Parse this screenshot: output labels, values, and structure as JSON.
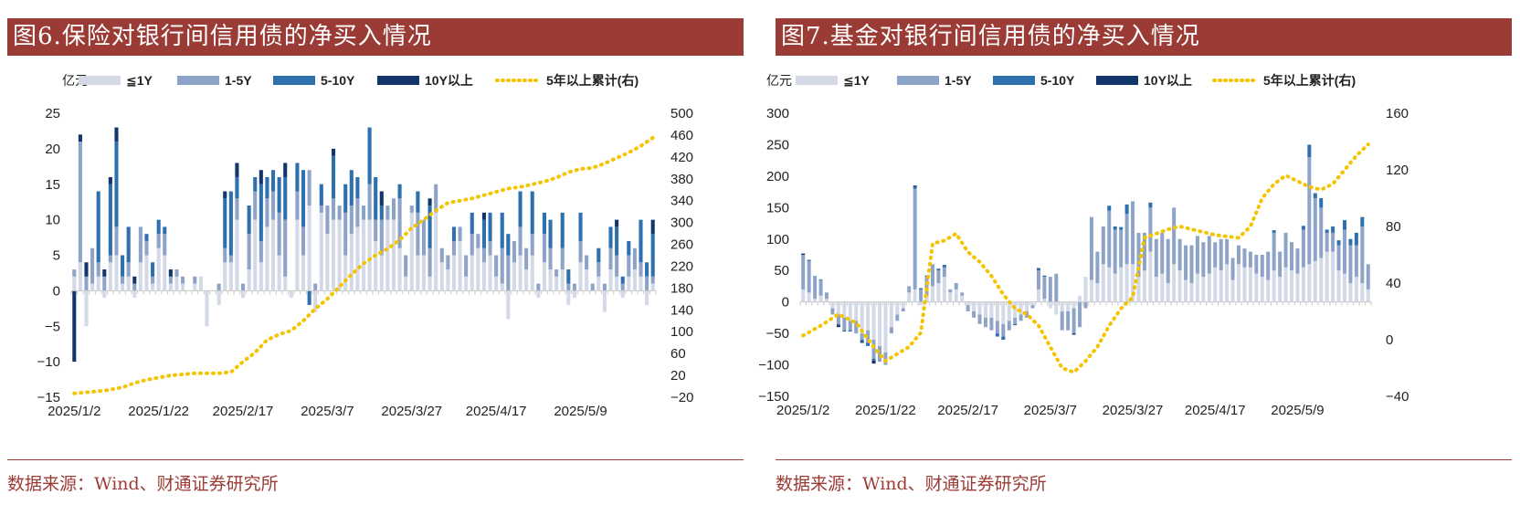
{
  "colors": {
    "title_bg": "#9b3b35",
    "lt1y": "#d4d9e8",
    "y1_5": "#8ea3c8",
    "y5_10": "#2e6fad",
    "y10p": "#12356b",
    "cum": "#f5c400"
  },
  "legend": {
    "unit": "亿元",
    "s1": "≦1Y",
    "s2": "1-5Y",
    "s3": "5-10Y",
    "s4": "10Y以上",
    "s5": "5年以上累计(右)"
  },
  "charts": [
    {
      "title": "图6.保险对银行间信用债的净买入情况",
      "source": "数据来源：Wind、财通证券研究所",
      "chart_data": {
        "type": "bar",
        "stacked": true,
        "x_tick_labels": [
          "2025/1/2",
          "2025/1/22",
          "2025/2/17",
          "2025/3/7",
          "2025/3/27",
          "2025/4/17",
          "2025/5/9"
        ],
        "x_tick_index": [
          0,
          14,
          28,
          42,
          56,
          70,
          84
        ],
        "ylim": [
          -15,
          25
        ],
        "yticks": [
          -15,
          -10,
          -5,
          0,
          5,
          10,
          15,
          20,
          25
        ],
        "y2lim": [
          -20,
          500
        ],
        "y2ticks": [
          -20,
          20,
          60,
          100,
          140,
          180,
          220,
          260,
          300,
          340,
          380,
          420,
          460,
          500
        ],
        "series_names": [
          "≦1Y",
          "1-5Y",
          "5-10Y",
          "10Y以上",
          "5年以上累计(右)"
        ],
        "lt1y": [
          2,
          4,
          -5,
          1,
          2,
          -1,
          4,
          5,
          1,
          2,
          -1,
          4,
          5,
          1,
          6,
          5,
          1,
          2,
          1,
          0,
          1,
          2,
          -5,
          0,
          -2,
          4,
          4,
          10,
          -1,
          3,
          10,
          4,
          9,
          10,
          5,
          2,
          -1,
          10,
          5,
          12,
          -3,
          11,
          8,
          10,
          10,
          5,
          8,
          9,
          10,
          10,
          7,
          5,
          10,
          10,
          6,
          2,
          11,
          5,
          5,
          2,
          11,
          4,
          3,
          5,
          7,
          2,
          5,
          6,
          4,
          5,
          2,
          1,
          -4,
          4,
          5,
          3,
          5,
          -1,
          4,
          3,
          2,
          3,
          -2,
          -1,
          4,
          3,
          0,
          2,
          -3,
          3,
          2,
          -1,
          2,
          3,
          2,
          -2,
          1
        ],
        "y1_5": [
          1,
          17,
          2,
          5,
          2,
          2,
          1,
          4,
          1,
          2,
          1,
          5,
          2,
          1,
          2,
          3,
          1,
          1,
          1,
          0,
          1,
          0,
          0,
          0,
          1,
          2,
          1,
          3,
          1,
          5,
          4,
          3,
          4,
          4,
          6,
          8,
          0,
          4,
          4,
          5,
          1,
          1,
          4,
          3,
          2,
          6,
          4,
          4,
          2,
          5,
          3,
          5,
          2,
          3,
          7,
          3,
          1,
          6,
          5,
          4,
          4,
          2,
          2,
          2,
          2,
          3,
          3,
          2,
          2,
          2,
          3,
          5,
          5,
          3,
          4,
          3,
          3,
          1,
          4,
          3,
          1,
          3,
          1,
          1,
          3,
          2,
          1,
          2,
          1,
          3,
          3,
          1,
          3,
          3,
          2,
          2,
          1
        ],
        "y5_10": [
          0,
          0,
          0,
          0,
          10,
          0,
          10,
          12,
          3,
          5,
          0,
          0,
          1,
          2,
          2,
          1,
          0,
          0,
          0,
          0,
          0,
          0,
          0,
          0,
          0,
          7,
          9,
          3,
          0,
          4,
          2,
          8,
          3,
          3,
          5,
          6,
          0,
          4,
          8,
          -2,
          0,
          3,
          0,
          6,
          0,
          4,
          5,
          3,
          0,
          8,
          6,
          2,
          0,
          0,
          2,
          0,
          0,
          3,
          0,
          6,
          0,
          0,
          0,
          2,
          0,
          0,
          3,
          0,
          4,
          4,
          0,
          5,
          3,
          0,
          5,
          0,
          6,
          0,
          3,
          4,
          0,
          5,
          2,
          0,
          4,
          0,
          0,
          2,
          0,
          3,
          4,
          1,
          2,
          0,
          6,
          2,
          6
        ],
        "y10p": [
          -10,
          1,
          2,
          0,
          0,
          1,
          1,
          2,
          0,
          0,
          1,
          0,
          0,
          0,
          0,
          0,
          1,
          0,
          0,
          0,
          0,
          0,
          0,
          0,
          0,
          1,
          0,
          2,
          0,
          0,
          0,
          2,
          0,
          0,
          0,
          2,
          0,
          0,
          0,
          0,
          0,
          0,
          0,
          1,
          0,
          0,
          0,
          0,
          0,
          0,
          0,
          2,
          0,
          0,
          0,
          0,
          0,
          0,
          0,
          1,
          0,
          0,
          0,
          0,
          0,
          0,
          0,
          0,
          1,
          0,
          0,
          0,
          0,
          0,
          0,
          0,
          0,
          0,
          0,
          0,
          0,
          0,
          0,
          0,
          0,
          0,
          0,
          0,
          0,
          0,
          1,
          0,
          0,
          0,
          0,
          0,
          2
        ],
        "cum_x": [
          0,
          3,
          5,
          8,
          10,
          12,
          14,
          16,
          18,
          20,
          22,
          24,
          26,
          28,
          30,
          32,
          34,
          36,
          38,
          40,
          42,
          44,
          46,
          48,
          50,
          52,
          54,
          56,
          58,
          60,
          62,
          64,
          66,
          68,
          70,
          72,
          74,
          76,
          78,
          80,
          82,
          84,
          86,
          88,
          90,
          92,
          94,
          96
        ],
        "cum": [
          -13,
          -10,
          -8,
          -2,
          6,
          12,
          16,
          20,
          22,
          24,
          24,
          24,
          26,
          45,
          62,
          85,
          95,
          102,
          120,
          142,
          160,
          182,
          205,
          225,
          240,
          252,
          268,
          290,
          305,
          322,
          336,
          340,
          344,
          350,
          356,
          362,
          365,
          370,
          375,
          382,
          392,
          398,
          400,
          408,
          418,
          428,
          440,
          455
        ]
      }
    },
    {
      "title": "图7.基金对银行间信用债的净买入情况",
      "source": "数据来源：Wind、财通证券研究所",
      "chart_data": {
        "type": "bar",
        "stacked": true,
        "x_tick_labels": [
          "2025/1/2",
          "2025/1/22",
          "2025/2/17",
          "2025/3/7",
          "2025/3/27",
          "2025/4/17",
          "2025/5/9"
        ],
        "x_tick_index": [
          0,
          14,
          28,
          42,
          56,
          70,
          84
        ],
        "ylim": [
          -150,
          300
        ],
        "yticks": [
          -150,
          -100,
          -50,
          0,
          50,
          100,
          150,
          200,
          250,
          300
        ],
        "y2lim": [
          -40,
          160
        ],
        "y2ticks": [
          -40,
          0,
          40,
          80,
          120,
          160
        ],
        "series_names": [
          "≦1Y",
          "1-5Y",
          "5-10Y",
          "10Y以上",
          "5年以上累计(右)"
        ],
        "lt1y": [
          20,
          15,
          5,
          10,
          5,
          -10,
          -20,
          -25,
          -30,
          -30,
          -50,
          -45,
          -60,
          -70,
          -80,
          -40,
          -20,
          -10,
          15,
          20,
          -5,
          10,
          25,
          30,
          40,
          15,
          20,
          10,
          -5,
          -15,
          -20,
          -25,
          -25,
          -30,
          -35,
          -30,
          -25,
          -20,
          -15,
          -5,
          20,
          5,
          -10,
          -20,
          -15,
          -15,
          -10,
          10,
          40,
          35,
          30,
          60,
          55,
          45,
          55,
          60,
          60,
          40,
          50,
          80,
          40,
          45,
          30,
          60,
          50,
          35,
          30,
          45,
          40,
          45,
          55,
          50,
          60,
          35,
          60,
          55,
          55,
          45,
          40,
          35,
          50,
          40,
          55,
          50,
          45,
          55,
          60,
          65,
          70,
          80,
          80,
          50,
          45,
          30,
          40,
          30,
          20
        ],
        "y1_5": [
          55,
          50,
          35,
          25,
          10,
          -10,
          -15,
          -20,
          -15,
          -20,
          -10,
          -20,
          -30,
          -25,
          -20,
          -10,
          -10,
          -5,
          10,
          160,
          20,
          30,
          35,
          20,
          15,
          5,
          10,
          5,
          -10,
          -10,
          -15,
          -15,
          -20,
          -20,
          -20,
          -15,
          -10,
          -10,
          -10,
          -5,
          30,
          35,
          40,
          45,
          -30,
          -30,
          -40,
          -40,
          -10,
          100,
          50,
          60,
          90,
          70,
          60,
          80,
          100,
          70,
          60,
          70,
          60,
          65,
          70,
          90,
          50,
          55,
          60,
          60,
          55,
          60,
          40,
          50,
          40,
          35,
          30,
          30,
          25,
          30,
          35,
          45,
          60,
          40,
          55,
          45,
          40,
          60,
          170,
          100,
          80,
          30,
          30,
          40,
          70,
          60,
          50,
          90,
          40
        ],
        "y5_10": [
          0,
          2,
          1,
          1,
          0,
          0,
          -2,
          -2,
          -2,
          0,
          -3,
          -5,
          -3,
          0,
          0,
          0,
          0,
          0,
          0,
          3,
          2,
          2,
          0,
          3,
          4,
          0,
          0,
          0,
          0,
          0,
          0,
          0,
          0,
          -5,
          -5,
          0,
          -2,
          0,
          0,
          0,
          4,
          2,
          0,
          0,
          0,
          0,
          0,
          0,
          0,
          0,
          0,
          0,
          8,
          5,
          4,
          15,
          0,
          0,
          0,
          8,
          0,
          0,
          0,
          0,
          0,
          0,
          0,
          0,
          0,
          0,
          0,
          0,
          0,
          0,
          0,
          0,
          0,
          0,
          0,
          0,
          4,
          0,
          0,
          0,
          0,
          6,
          20,
          8,
          15,
          5,
          10,
          8,
          15,
          10,
          20,
          15,
          0
        ],
        "y10p": [
          2,
          0,
          0,
          0,
          0,
          0,
          -3,
          0,
          0,
          0,
          -2,
          0,
          -5,
          0,
          0,
          0,
          0,
          0,
          0,
          2,
          0,
          0,
          0,
          0,
          0,
          0,
          0,
          0,
          0,
          0,
          0,
          0,
          0,
          0,
          0,
          0,
          0,
          0,
          0,
          0,
          0,
          0,
          0,
          0,
          0,
          0,
          -2,
          0,
          0,
          0,
          0,
          0,
          0,
          0,
          0,
          0,
          0,
          0,
          0,
          0,
          0,
          0,
          0,
          0,
          0,
          0,
          0,
          0,
          0,
          0,
          0,
          0,
          0,
          0,
          0,
          0,
          0,
          0,
          0,
          0,
          0,
          0,
          0,
          0,
          0,
          0,
          0,
          0,
          0,
          0,
          0,
          0,
          0,
          0,
          0,
          0,
          0
        ],
        "cum_x": [
          0,
          3,
          6,
          9,
          12,
          14,
          16,
          18,
          20,
          22,
          24,
          26,
          28,
          30,
          32,
          34,
          36,
          38,
          40,
          42,
          44,
          46,
          48,
          50,
          52,
          54,
          56,
          58,
          60,
          62,
          64,
          66,
          68,
          70,
          72,
          74,
          76,
          78,
          80,
          82,
          84,
          86,
          88,
          90,
          92,
          94,
          96
        ],
        "cum": [
          3,
          10,
          18,
          12,
          -5,
          -15,
          -10,
          -5,
          5,
          68,
          70,
          75,
          62,
          55,
          45,
          32,
          22,
          18,
          10,
          -5,
          -20,
          -23,
          -15,
          -5,
          10,
          22,
          30,
          72,
          75,
          78,
          80,
          78,
          76,
          74,
          73,
          72,
          80,
          100,
          110,
          116,
          112,
          108,
          106,
          110,
          120,
          130,
          138
        ]
      }
    }
  ]
}
